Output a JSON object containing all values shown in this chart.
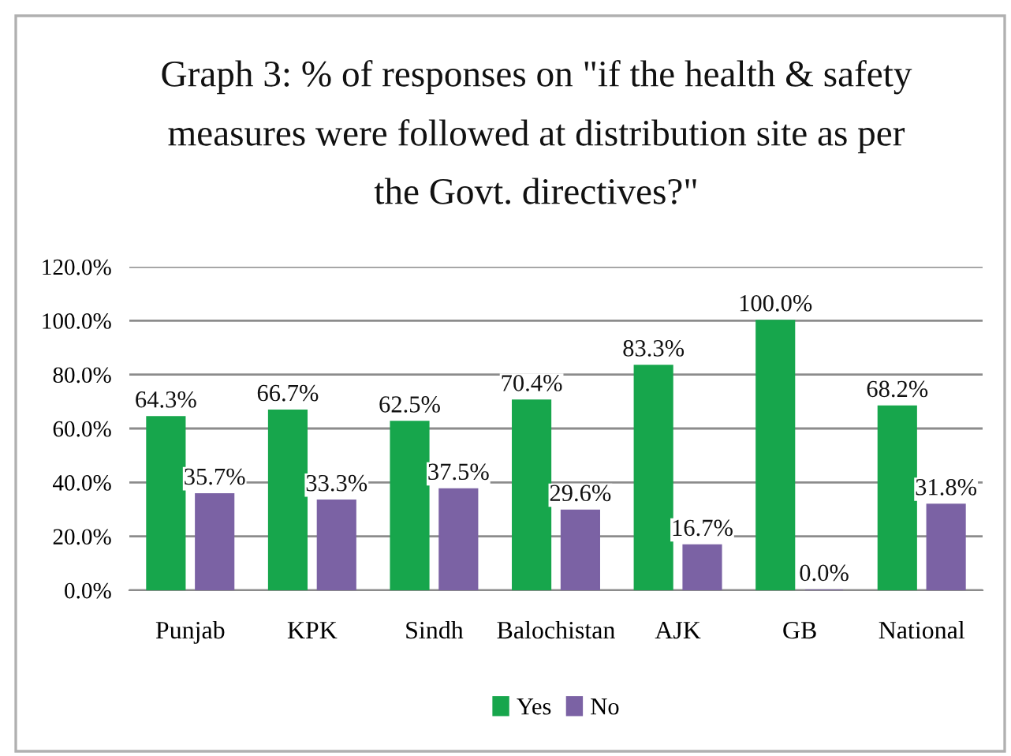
{
  "chart_data": {
    "type": "bar",
    "title": "Graph 3: % of responses on \"if the health & safety measures were followed at distribution site as per the Govt. directives?\"",
    "categories": [
      "Punjab",
      "KPK",
      "Sindh",
      "Balochistan",
      "AJK",
      "GB",
      "National"
    ],
    "series": [
      {
        "name": "Yes",
        "color": "#17a64c",
        "values": [
          64.3,
          66.7,
          62.5,
          70.4,
          83.3,
          100.0,
          68.2
        ],
        "value_labels": [
          "64.3%",
          "66.7%",
          "62.5%",
          "70.4%",
          "83.3%",
          "100.0%",
          "68.2%"
        ]
      },
      {
        "name": "No",
        "color": "#7b62a4",
        "values": [
          35.7,
          33.3,
          37.5,
          29.6,
          16.7,
          0.0,
          31.8
        ],
        "value_labels": [
          "35.7%",
          "33.3%",
          "37.5%",
          "29.6%",
          "16.7%",
          "0.0%",
          "31.8%"
        ]
      }
    ],
    "ylim": [
      0,
      120
    ],
    "yticks": [
      {
        "value": 0,
        "label": "0.0%"
      },
      {
        "value": 20,
        "label": "20.0%"
      },
      {
        "value": 40,
        "label": "40.0%"
      },
      {
        "value": 60,
        "label": "60.0%"
      },
      {
        "value": 80,
        "label": "80.0%"
      },
      {
        "value": 100,
        "label": "100.0%"
      },
      {
        "value": 120,
        "label": "120.0%"
      }
    ],
    "grid": "y",
    "legend": "bottom"
  }
}
